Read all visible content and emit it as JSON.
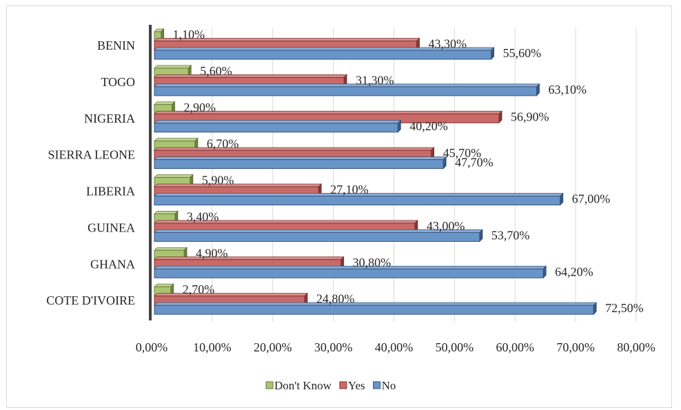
{
  "chart_data": {
    "type": "bar",
    "orientation": "horizontal",
    "categories": [
      "BENIN",
      "TOGO",
      "NIGERIA",
      "SIERRA LEONE",
      "LIBERIA",
      "GUINEA",
      "GHANA",
      "COTE D'IVOIRE"
    ],
    "series": [
      {
        "name": "Don't Know",
        "color": "#9bbb59",
        "values": [
          1.1,
          5.6,
          2.9,
          6.7,
          5.9,
          3.4,
          4.9,
          2.7
        ],
        "labels": [
          "1,10%",
          "5,60%",
          "2,90%",
          "6,70%",
          "5,90%",
          "3,40%",
          "4,90%",
          "2,70%"
        ]
      },
      {
        "name": "Yes",
        "color": "#c0504d",
        "values": [
          43.3,
          31.3,
          56.9,
          45.7,
          27.1,
          43.0,
          30.8,
          24.8
        ],
        "labels": [
          "43,30%",
          "31,30%",
          "56,90%",
          "45,70%",
          "27,10%",
          "43,00%",
          "30,80%",
          "24,80%"
        ]
      },
      {
        "name": "No",
        "color": "#4f81bd",
        "values": [
          55.6,
          63.1,
          40.2,
          47.7,
          67.0,
          53.7,
          64.2,
          72.5
        ],
        "labels": [
          "55,60%",
          "63,10%",
          "40,20%",
          "47,70%",
          "67,00%",
          "53,70%",
          "64,20%",
          "72,50%"
        ]
      }
    ],
    "xlim": [
      0,
      80
    ],
    "ticks": [
      0,
      10,
      20,
      30,
      40,
      50,
      60,
      70,
      80
    ],
    "tick_labels": [
      "0,00%",
      "10,00%",
      "20,00%",
      "30,00%",
      "40,00%",
      "50,00%",
      "60,00%",
      "70,00%",
      "80,00%"
    ],
    "grid": true,
    "legend_position": "bottom",
    "title": "",
    "xlabel": "",
    "ylabel": ""
  }
}
